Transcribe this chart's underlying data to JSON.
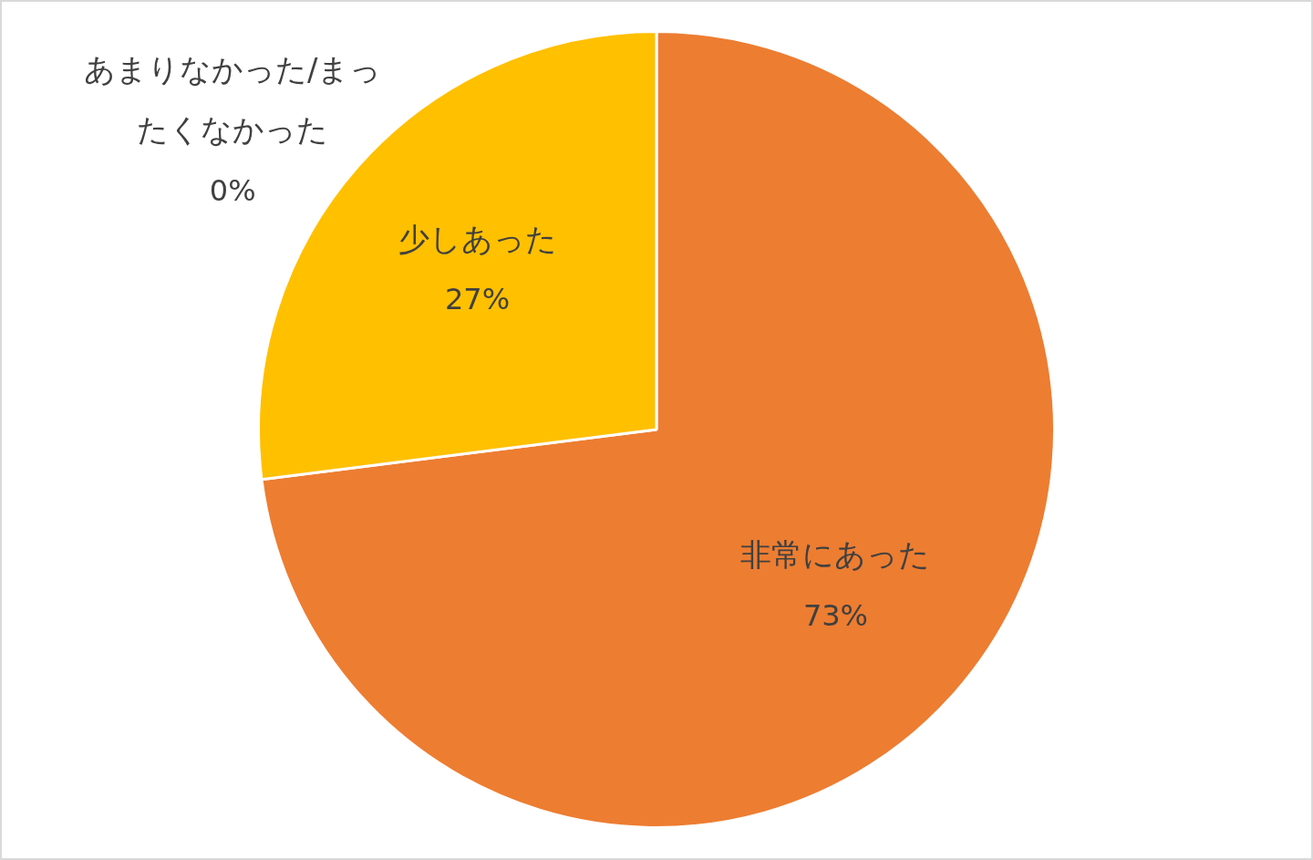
{
  "chart_data": {
    "type": "pie",
    "categories": [
      "非常にあった",
      "少しあった",
      "あまりなかった/まったくなかった"
    ],
    "values": [
      73,
      27,
      0
    ],
    "colors": [
      "#ed7d31",
      "#ffc000",
      "#a5a5a5"
    ],
    "value_labels": [
      "73%",
      "27%",
      "0%"
    ],
    "legend": false
  }
}
